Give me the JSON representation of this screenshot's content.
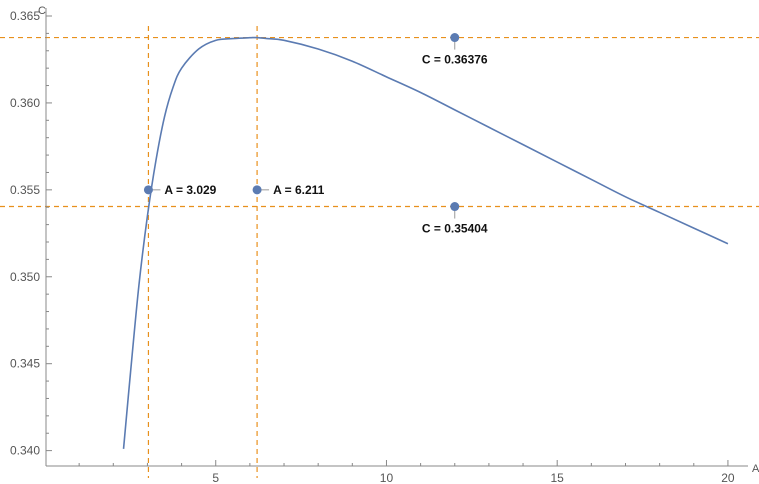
{
  "chart_data": {
    "type": "line",
    "xlabel": "A",
    "ylabel": "C",
    "xlim": [
      0,
      20.5
    ],
    "ylim": [
      0.339,
      0.365
    ],
    "grid": false,
    "x_ticks": [
      {
        "value": 5,
        "label": "5"
      },
      {
        "value": 10,
        "label": "10"
      },
      {
        "value": 15,
        "label": "15"
      },
      {
        "value": 20,
        "label": "20"
      }
    ],
    "y_ticks": [
      {
        "value": 0.34,
        "label": "0.340"
      },
      {
        "value": 0.345,
        "label": "0.345"
      },
      {
        "value": 0.35,
        "label": "0.350"
      },
      {
        "value": 0.355,
        "label": "0.355"
      },
      {
        "value": 0.36,
        "label": "0.360"
      },
      {
        "value": 0.365,
        "label": "0.365"
      }
    ],
    "series": [
      {
        "x": [
          2.3,
          2.5,
          2.75,
          3.0,
          3.25,
          3.5,
          3.75,
          4.0,
          4.5,
          5.0,
          5.5,
          6.0,
          6.211,
          6.5,
          7.0,
          8.0,
          9.0,
          10.0,
          11.0,
          12.0,
          13.0,
          14.0,
          15.0,
          16.0,
          17.0,
          18.0,
          19.0,
          20.0
        ],
        "y": [
          0.3401,
          0.3444,
          0.3495,
          0.3535,
          0.3567,
          0.3592,
          0.3609,
          0.362,
          0.3631,
          0.3636,
          0.3637,
          0.36375,
          0.36376,
          0.3637,
          0.3636,
          0.3631,
          0.3624,
          0.3615,
          0.3606,
          0.3596,
          0.3586,
          0.3576,
          0.3566,
          0.3556,
          0.3546,
          0.3537,
          0.3528,
          0.3519
        ]
      }
    ],
    "reference_lines": {
      "vertical": [
        3.029,
        6.211
      ],
      "horizontal": [
        0.35404,
        0.36376
      ],
      "color": "#e8901c"
    },
    "line_color": "#5b7bb2",
    "marker_color": "#5b7bb2",
    "annotations": [
      {
        "x": 3.029,
        "y": 0.355,
        "label": "A = 3.029",
        "placement": "right"
      },
      {
        "x": 6.211,
        "y": 0.355,
        "label": "A = 6.211",
        "placement": "right"
      },
      {
        "x": 12.0,
        "y": 0.36376,
        "label": "C = 0.36376",
        "placement": "below"
      },
      {
        "x": 12.0,
        "y": 0.35404,
        "label": "C = 0.35404",
        "placement": "below"
      }
    ]
  }
}
